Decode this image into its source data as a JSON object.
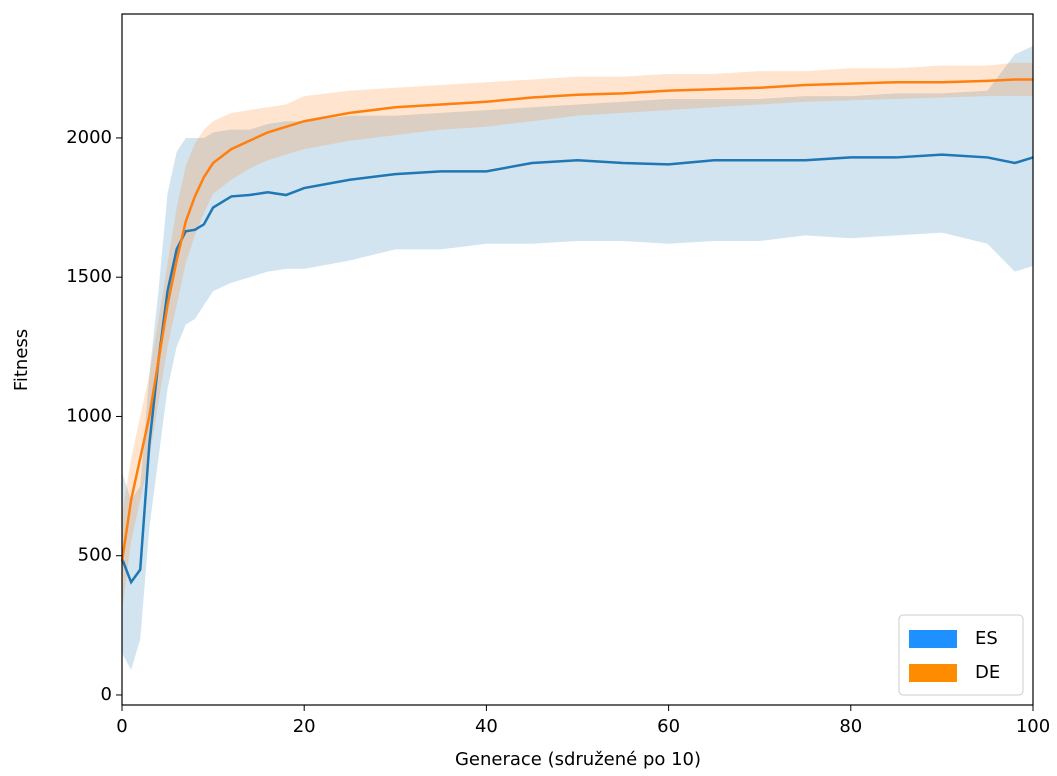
{
  "chart_data": {
    "type": "line",
    "xlabel": "Generace (sdružené po 10)",
    "ylabel": "Fitness",
    "x": [
      0,
      1,
      2,
      3,
      4,
      5,
      6,
      7,
      8,
      9,
      10,
      12,
      14,
      16,
      18,
      20,
      25,
      30,
      35,
      40,
      45,
      50,
      55,
      60,
      65,
      70,
      75,
      80,
      85,
      90,
      95,
      98,
      100
    ],
    "series": [
      {
        "name": "ES",
        "color": "#1f77b4",
        "legend_color": "#1e90ff",
        "values": [
          490,
          405,
          450,
          900,
          1200,
          1450,
          1600,
          1665,
          1670,
          1690,
          1750,
          1790,
          1795,
          1805,
          1795,
          1820,
          1850,
          1870,
          1880,
          1880,
          1910,
          1920,
          1910,
          1905,
          1920,
          1920,
          1920,
          1930,
          1930,
          1940,
          1930,
          1910,
          1930
        ],
        "lower": [
          150,
          90,
          200,
          600,
          850,
          1100,
          1250,
          1330,
          1350,
          1400,
          1450,
          1480,
          1500,
          1520,
          1530,
          1530,
          1560,
          1600,
          1600,
          1620,
          1620,
          1630,
          1630,
          1620,
          1630,
          1630,
          1650,
          1640,
          1650,
          1660,
          1620,
          1520,
          1540
        ],
        "upper": [
          800,
          700,
          750,
          1150,
          1450,
          1800,
          1950,
          2000,
          2000,
          2000,
          2020,
          2030,
          2030,
          2050,
          2060,
          2060,
          2080,
          2080,
          2090,
          2100,
          2110,
          2120,
          2130,
          2140,
          2140,
          2140,
          2150,
          2150,
          2160,
          2160,
          2170,
          2300,
          2330
        ]
      },
      {
        "name": "DE",
        "color": "#ff7f0e",
        "legend_color": "#ff8c00",
        "values": [
          480,
          700,
          850,
          1000,
          1200,
          1400,
          1560,
          1700,
          1790,
          1860,
          1910,
          1960,
          1990,
          2020,
          2040,
          2060,
          2090,
          2110,
          2120,
          2130,
          2145,
          2155,
          2160,
          2170,
          2175,
          2180,
          2190,
          2195,
          2200,
          2200,
          2205,
          2210,
          2210
        ],
        "lower": [
          300,
          550,
          700,
          850,
          1050,
          1250,
          1400,
          1550,
          1650,
          1730,
          1800,
          1850,
          1890,
          1920,
          1940,
          1960,
          1990,
          2010,
          2030,
          2040,
          2060,
          2080,
          2090,
          2100,
          2110,
          2120,
          2130,
          2135,
          2140,
          2145,
          2150,
          2150,
          2150
        ],
        "upper": [
          650,
          850,
          1000,
          1150,
          1350,
          1550,
          1750,
          1900,
          1980,
          2030,
          2060,
          2090,
          2100,
          2110,
          2120,
          2150,
          2170,
          2180,
          2190,
          2200,
          2210,
          2220,
          2220,
          2230,
          2230,
          2240,
          2240,
          2250,
          2250,
          2260,
          2260,
          2270,
          2270
        ]
      }
    ],
    "xlim": [
      0,
      100
    ],
    "ylim": [
      -36,
      2445
    ],
    "xticks": [
      0,
      20,
      40,
      60,
      80,
      100
    ],
    "yticks": [
      0,
      500,
      1000,
      1500,
      2000
    ],
    "grid": false,
    "legend": "lower right"
  }
}
